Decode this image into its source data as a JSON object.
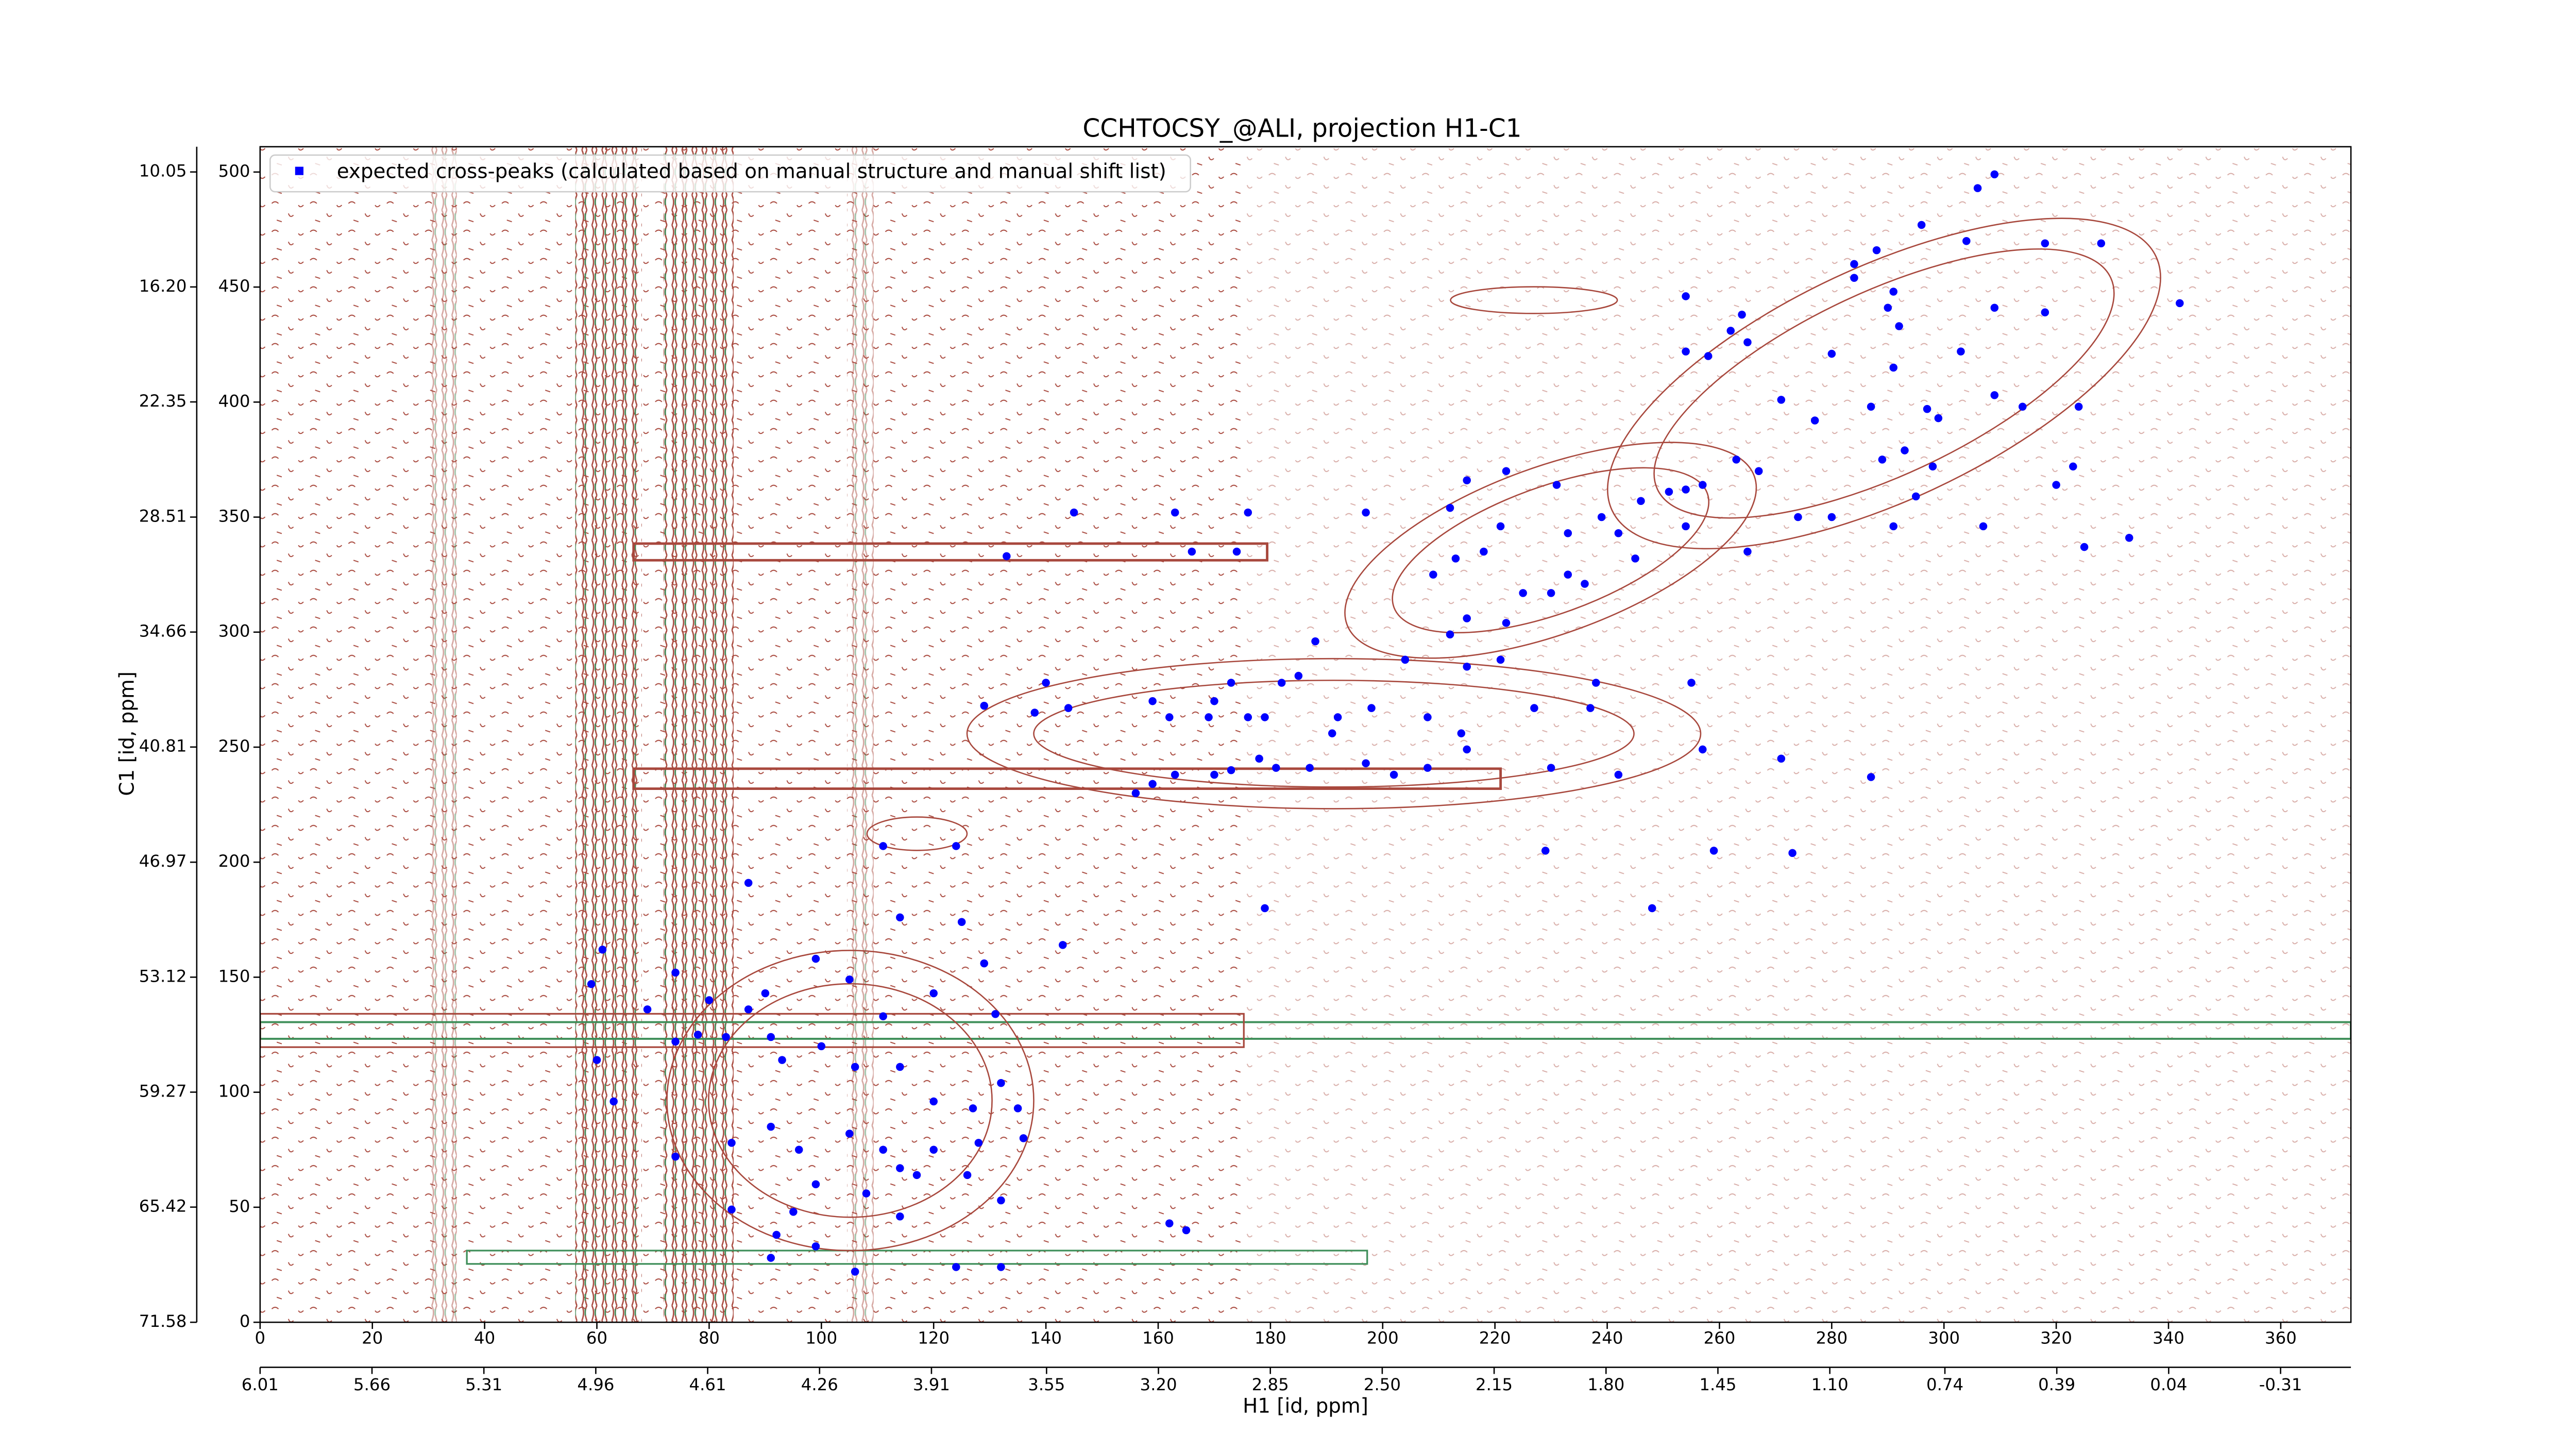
{
  "chart_data": {
    "type": "scatter",
    "title": "CCHTOCSY_@ALI, projection H1-C1",
    "xlabel": "H1 [id, ppm]",
    "ylabel": "C1 [id, ppm]",
    "legend": "upper left",
    "series": [
      {
        "name": "expected cross-peaks (calculated based on manual structure and manual shift list)",
        "color": "#0000ff",
        "x": [
          309,
          306,
          296,
          318,
          328,
          304,
          284,
          284,
          288,
          254,
          291,
          342,
          318,
          309,
          290,
          264,
          262,
          265,
          254,
          258,
          280,
          292,
          303,
          291,
          309,
          314,
          324,
          271,
          287,
          297,
          299,
          277,
          293,
          289,
          323,
          320,
          267,
          263,
          257,
          251,
          254,
          246,
          239,
          231,
          222,
          215,
          212,
          221,
          233,
          242,
          236,
          233,
          230,
          225,
          218,
          215,
          222,
          298,
          295,
          280,
          274,
          291,
          307,
          325,
          333,
          265,
          254,
          245,
          213,
          209,
          197,
          188,
          204,
          212,
          221,
          215,
          185,
          182,
          173,
          170,
          176,
          169,
          179,
          192,
          198,
          208,
          214,
          227,
          237,
          255,
          238,
          215,
          208,
          202,
          197,
          191,
          187,
          181,
          178,
          173,
          170,
          163,
          159,
          156,
          162,
          159,
          144,
          140,
          138,
          129,
          133,
          145,
          166,
          174,
          163,
          176,
          230,
          242,
          257,
          271,
          287,
          273,
          259,
          229,
          124,
          111,
          87,
          114,
          125,
          143,
          179,
          248,
          129,
          131,
          120,
          105,
          111,
          99,
          90,
          80,
          74,
          69,
          61,
          59,
          60,
          63,
          74,
          78,
          83,
          91,
          93,
          100,
          106,
          114,
          120,
          127,
          135,
          136,
          128,
          120,
          114,
          105,
          96,
          91,
          84,
          74,
          99,
          108,
          117,
          126,
          95,
          92,
          84,
          99,
          106,
          91,
          114,
          132,
          162,
          165,
          132,
          124,
          111,
          132,
          87
        ],
        "values": [
          499,
          493,
          477,
          469,
          469,
          470,
          460,
          454,
          466,
          446,
          448,
          443,
          439,
          441,
          441,
          438,
          431,
          426,
          422,
          420,
          421,
          433,
          422,
          415,
          403,
          398,
          398,
          401,
          398,
          397,
          393,
          392,
          379,
          375,
          372,
          364,
          370,
          375,
          364,
          361,
          362,
          357,
          350,
          364,
          370,
          366,
          354,
          346,
          343,
          343,
          321,
          325,
          317,
          317,
          335,
          306,
          304,
          372,
          359,
          350,
          350,
          346,
          346,
          337,
          341,
          335,
          346,
          332,
          332,
          325,
          352,
          296,
          288,
          299,
          288,
          285,
          281,
          278,
          278,
          270,
          263,
          263,
          263,
          263,
          267,
          263,
          256,
          267,
          267,
          278,
          278,
          249,
          241,
          238,
          243,
          256,
          241,
          241,
          245,
          240,
          238,
          238,
          234,
          230,
          263,
          270,
          267,
          278,
          265,
          268,
          333,
          352,
          335,
          335,
          352,
          352,
          241,
          238,
          249,
          245,
          237,
          204,
          205,
          205,
          207,
          207,
          191,
          176,
          174,
          164,
          180,
          180,
          156,
          134,
          143,
          149,
          133,
          158,
          143,
          140,
          152,
          136,
          162,
          147,
          114,
          96,
          122,
          125,
          124,
          124,
          114,
          120,
          111,
          111,
          96,
          93,
          93,
          80,
          78,
          75,
          67,
          82,
          75,
          85,
          78,
          72,
          60,
          56,
          64,
          64,
          48,
          38,
          49,
          33,
          22,
          28,
          46,
          53,
          43,
          40,
          24,
          24,
          75,
          104,
          136
        ]
      }
    ],
    "xlim": [
      0,
      372.5
    ],
    "xticks": [
      0,
      20,
      40,
      60,
      80,
      100,
      120,
      140,
      160,
      180,
      200,
      220,
      240,
      260,
      280,
      300,
      320,
      340,
      360
    ],
    "ylim": [
      0,
      511
    ],
    "yticks": [
      0,
      50,
      100,
      150,
      200,
      250,
      300,
      350,
      400,
      450,
      500
    ],
    "x2lim": [
      6.01,
      -0.53
    ],
    "x2ticks": [
      6.01,
      5.66,
      5.31,
      4.96,
      4.61,
      4.26,
      3.91,
      3.55,
      {
        "value": 3.2,
        "label": "3.20"
      },
      2.85,
      {
        "value": 2.5,
        "label": "2.50"
      },
      2.15,
      {
        "value": 1.8,
        "label": "1.80"
      },
      1.45,
      {
        "value": 1.1,
        "label": "1.10"
      },
      0.74,
      0.39,
      0.04,
      -0.31
    ],
    "y2lim": [
      71.58,
      8.7
    ],
    "y2ticks": [
      71.58,
      65.42,
      59.27,
      53.12,
      46.97,
      40.81,
      34.66,
      28.51,
      22.35,
      {
        "value": 16.2,
        "label": "16.20"
      },
      10.05
    ]
  }
}
